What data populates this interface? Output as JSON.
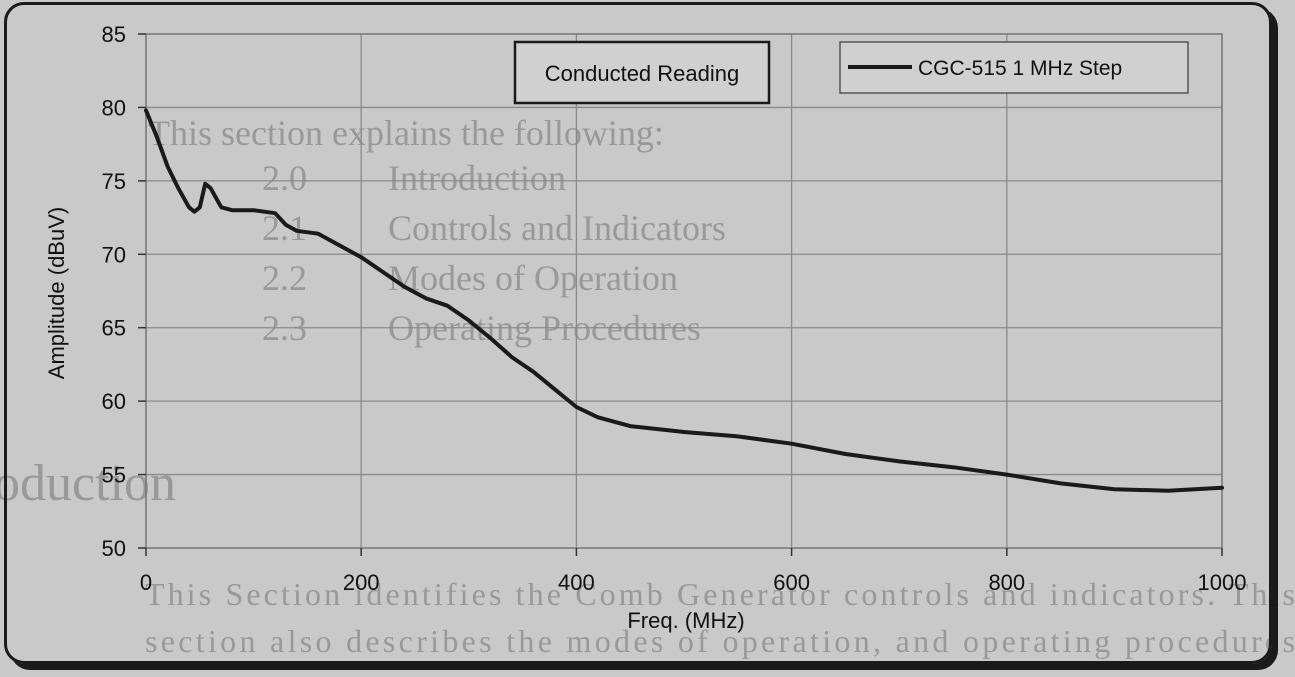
{
  "background_text": {
    "heading": "This section explains the following:",
    "items": [
      {
        "num": "2.0",
        "label": "Introduction"
      },
      {
        "num": "2.1",
        "label": "Controls and Indicators"
      },
      {
        "num": "2.2",
        "label": "Modes of Operation"
      },
      {
        "num": "2.3",
        "label": "Operating Procedures"
      }
    ],
    "section_title": "oduction",
    "body_line1": "This Section identifies the Comb Generator controls and indicators. This",
    "body_line2": "section also describes the modes of operation, and operating procedures"
  },
  "chart_data": {
    "type": "line",
    "title": "Conducted Reading",
    "xlabel": "Freq. (MHz)",
    "ylabel": "Amplitude (dBuV)",
    "xlim": [
      0,
      1000
    ],
    "ylim": [
      50,
      85
    ],
    "xticks": [
      0,
      200,
      400,
      600,
      800,
      1000
    ],
    "yticks": [
      50,
      55,
      60,
      65,
      70,
      75,
      80,
      85
    ],
    "grid": true,
    "legend_position": "top-right",
    "series": [
      {
        "name": "CGC-515 1 MHz Step",
        "color": "#1a1a1a",
        "x": [
          0,
          10,
          20,
          30,
          40,
          45,
          50,
          55,
          60,
          70,
          80,
          100,
          120,
          130,
          140,
          160,
          180,
          200,
          220,
          240,
          260,
          280,
          300,
          320,
          340,
          360,
          380,
          400,
          420,
          450,
          500,
          550,
          600,
          650,
          700,
          750,
          800,
          850,
          900,
          950,
          1000
        ],
        "values": [
          79.8,
          78.0,
          76.0,
          74.5,
          73.2,
          72.9,
          73.2,
          74.8,
          74.5,
          73.2,
          73.0,
          73.0,
          72.8,
          72.0,
          71.6,
          71.4,
          70.6,
          69.8,
          68.8,
          67.8,
          67.0,
          66.5,
          65.5,
          64.3,
          63.0,
          62.0,
          60.8,
          59.6,
          58.9,
          58.3,
          57.9,
          57.6,
          57.1,
          56.4,
          55.9,
          55.5,
          55.0,
          54.4,
          54.0,
          53.9,
          54.1
        ]
      }
    ]
  }
}
